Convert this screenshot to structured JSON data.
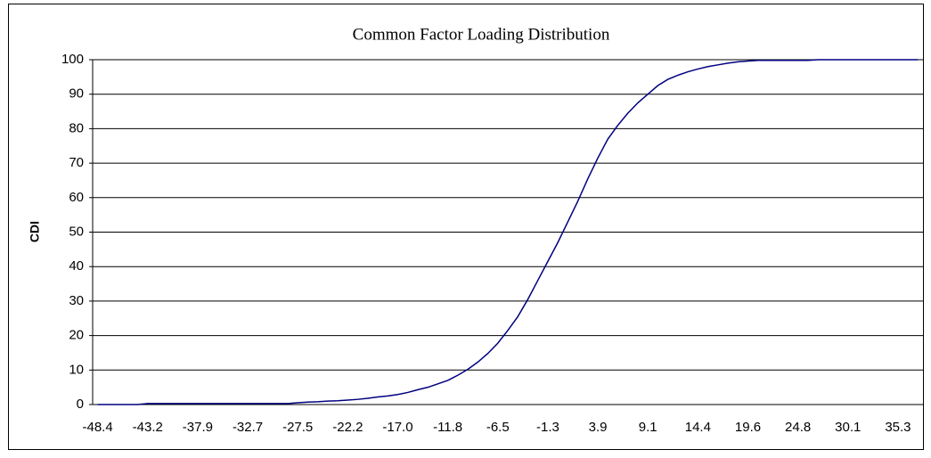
{
  "chart_data": {
    "type": "line",
    "title": "Common Factor Loading Distribution",
    "y_label": "CDI",
    "categories": [
      "-48.4",
      null,
      null,
      null,
      null,
      "-43.2",
      null,
      null,
      null,
      null,
      "-37.9",
      null,
      null,
      null,
      null,
      "-32.7",
      null,
      null,
      null,
      null,
      "-27.5",
      null,
      null,
      null,
      null,
      "-22.2",
      null,
      null,
      null,
      null,
      "-17.0",
      null,
      null,
      null,
      null,
      "-11.8",
      null,
      null,
      null,
      null,
      "-6.5",
      null,
      null,
      null,
      null,
      "-1.3",
      null,
      null,
      null,
      null,
      "3.9",
      null,
      null,
      null,
      null,
      "9.1",
      null,
      null,
      null,
      null,
      "14.4",
      null,
      null,
      null,
      null,
      "19.6",
      null,
      null,
      null,
      null,
      "24.8",
      null,
      null,
      null,
      null,
      "30.1",
      null,
      null,
      null,
      null,
      "35.3",
      null,
      null
    ],
    "series": [
      {
        "name": "CDI",
        "color": "#000080",
        "values": [
          0,
          0,
          0,
          0,
          0,
          0.3,
          0.3,
          0.3,
          0.3,
          0.3,
          0.3,
          0.3,
          0.3,
          0.3,
          0.3,
          0.3,
          0.3,
          0.3,
          0.3,
          0.3,
          0.5,
          0.7,
          0.8,
          1.0,
          1.1,
          1.3,
          1.5,
          1.8,
          2.2,
          2.5,
          2.9,
          3.5,
          4.3,
          5.0,
          6.0,
          7.0,
          8.5,
          10.2,
          12.3,
          14.8,
          17.8,
          21.5,
          25.5,
          30.5,
          36.0,
          41.5,
          47,
          53,
          59,
          65.5,
          71.5,
          77,
          81,
          84.5,
          87.5,
          90.0,
          92.5,
          94.3,
          95.5,
          96.5,
          97.3,
          98.0,
          98.5,
          99.0,
          99.4,
          99.6,
          99.8,
          99.8,
          99.8,
          99.8,
          99.8,
          99.8,
          100,
          100,
          100,
          100,
          100,
          100,
          100,
          100,
          100,
          100,
          100
        ]
      }
    ],
    "ylim": [
      0,
      100
    ],
    "yticks": [
      0,
      10,
      20,
      30,
      40,
      50,
      60,
      70,
      80,
      90,
      100
    ],
    "grid": true
  }
}
